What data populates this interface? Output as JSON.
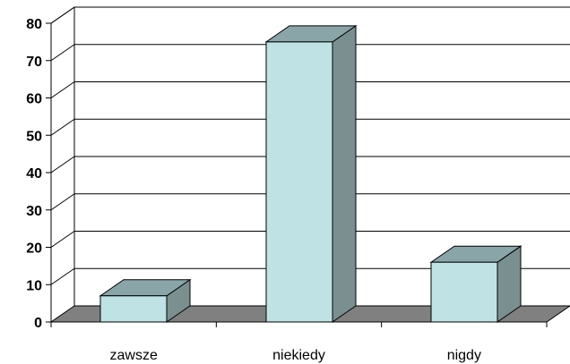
{
  "chart_data": {
    "type": "bar",
    "style": "3d",
    "categories": [
      "zawsze",
      "niekiedy",
      "nigdy"
    ],
    "values": [
      7,
      75,
      16
    ],
    "ylim": [
      0,
      80
    ],
    "yticks": [
      0,
      10,
      20,
      30,
      40,
      50,
      60,
      70,
      80
    ],
    "title": "",
    "xlabel": "",
    "ylabel": "",
    "grid": true,
    "legend": "none",
    "colors": {
      "bar_front": "#bfe3e4",
      "bar_top": "#8aa5a8",
      "bar_side": "#7a8f90",
      "floor": "#808080",
      "grid": "#000000"
    }
  }
}
